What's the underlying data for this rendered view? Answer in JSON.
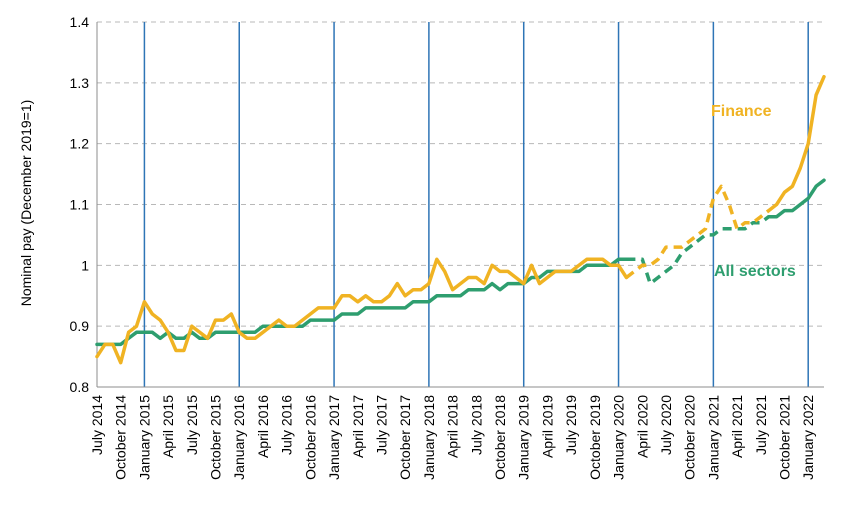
{
  "chart_data": {
    "type": "line",
    "ylabel": "Nominal pay (December 2019=1)",
    "xlabel": "",
    "ylim": [
      0.8,
      1.4
    ],
    "yticks": [
      "0.8",
      "0.9",
      "1",
      "1.1",
      "1.2",
      "1.3",
      "1.4"
    ],
    "grid": "horizontal dashed",
    "x_start": "2014-07",
    "x_end": "2022-01",
    "xtick_labels": [
      "July 2014",
      "October 2014",
      "January 2015",
      "April 2015",
      "July 2015",
      "October 2015",
      "January 2016",
      "April 2016",
      "July 2016",
      "October 2016",
      "January 2017",
      "April 2017",
      "July 2017",
      "October 2017",
      "January 2018",
      "April 2018",
      "July 2018",
      "October 2018",
      "January 2019",
      "April 2019",
      "July 2019",
      "October 2019",
      "January 2020",
      "April 2020",
      "July 2020",
      "October 2020",
      "January 2021",
      "April 2021",
      "July 2021",
      "October 2021",
      "January 2022"
    ],
    "vertical_markers": [
      "January 2015",
      "January 2016",
      "January 2017",
      "January 2018",
      "January 2019",
      "January 2020",
      "January 2021",
      "January 2022"
    ],
    "dashed_period": [
      "February 2020",
      "August 2021"
    ],
    "series": [
      {
        "name": "Finance",
        "color": "#F0B323",
        "values": [
          0.85,
          0.87,
          0.87,
          0.84,
          0.89,
          0.9,
          0.94,
          0.92,
          0.91,
          0.89,
          0.86,
          0.86,
          0.9,
          0.89,
          0.88,
          0.91,
          0.91,
          0.92,
          0.89,
          0.88,
          0.88,
          0.89,
          0.9,
          0.91,
          0.9,
          0.9,
          0.91,
          0.92,
          0.93,
          0.93,
          0.93,
          0.95,
          0.95,
          0.94,
          0.95,
          0.94,
          0.94,
          0.95,
          0.97,
          0.95,
          0.96,
          0.96,
          0.97,
          1.01,
          0.99,
          0.96,
          0.97,
          0.98,
          0.98,
          0.97,
          1.0,
          0.99,
          0.99,
          0.98,
          0.97,
          1.0,
          0.97,
          0.98,
          0.99,
          0.99,
          0.99,
          1.0,
          1.01,
          1.01,
          1.01,
          1.0,
          1.0,
          0.98,
          0.99,
          1.0,
          1.0,
          1.01,
          1.03,
          1.03,
          1.03,
          1.04,
          1.05,
          1.06,
          1.11,
          1.13,
          1.1,
          1.06,
          1.07,
          1.07,
          1.08,
          1.09,
          1.1,
          1.12,
          1.13,
          1.16,
          1.2,
          1.28,
          1.31
        ]
      },
      {
        "name": "All sectors",
        "color": "#2E9E6F",
        "values": [
          0.87,
          0.87,
          0.87,
          0.87,
          0.88,
          0.89,
          0.89,
          0.89,
          0.88,
          0.89,
          0.88,
          0.88,
          0.89,
          0.88,
          0.88,
          0.89,
          0.89,
          0.89,
          0.89,
          0.89,
          0.89,
          0.9,
          0.9,
          0.9,
          0.9,
          0.9,
          0.9,
          0.91,
          0.91,
          0.91,
          0.91,
          0.92,
          0.92,
          0.92,
          0.93,
          0.93,
          0.93,
          0.93,
          0.93,
          0.93,
          0.94,
          0.94,
          0.94,
          0.95,
          0.95,
          0.95,
          0.95,
          0.96,
          0.96,
          0.96,
          0.97,
          0.96,
          0.97,
          0.97,
          0.97,
          0.98,
          0.98,
          0.99,
          0.99,
          0.99,
          0.99,
          0.99,
          1.0,
          1.0,
          1.0,
          1.0,
          1.01,
          1.01,
          1.01,
          1.01,
          0.97,
          0.98,
          0.99,
          1.0,
          1.02,
          1.03,
          1.04,
          1.05,
          1.05,
          1.06,
          1.06,
          1.06,
          1.06,
          1.07,
          1.07,
          1.08,
          1.08,
          1.09,
          1.09,
          1.1,
          1.11,
          1.13,
          1.14
        ]
      }
    ]
  }
}
